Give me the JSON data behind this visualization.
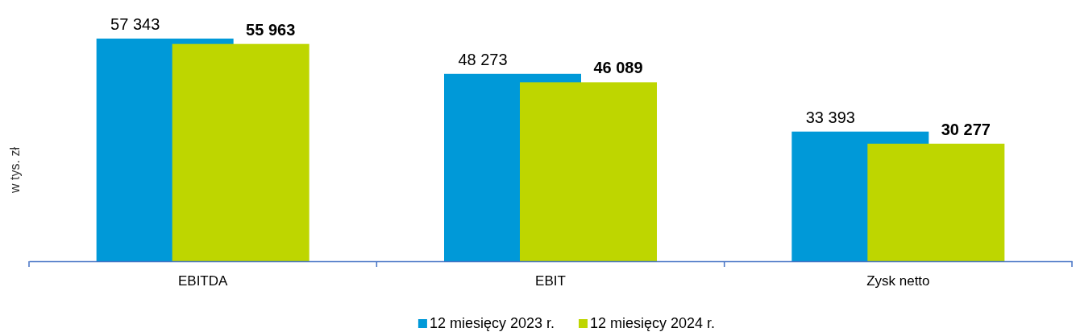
{
  "chart_data": {
    "type": "bar",
    "ylabel": "w tys. zł",
    "categories": [
      "EBITDA",
      "EBIT",
      "Zysk netto"
    ],
    "series": [
      {
        "name": "12 miesięcy 2023 r.",
        "color": "#0099d8",
        "values": [
          57343,
          48273,
          33393
        ],
        "value_labels": [
          "57 343",
          "48 273",
          "33 393"
        ]
      },
      {
        "name": "12 miesięcy 2024 r.",
        "color": "#bed600",
        "values": [
          55963,
          46089,
          30277
        ],
        "value_labels": [
          "55 963",
          "46 089",
          "30 277"
        ]
      }
    ],
    "legend": "bottom",
    "relative": false
  }
}
